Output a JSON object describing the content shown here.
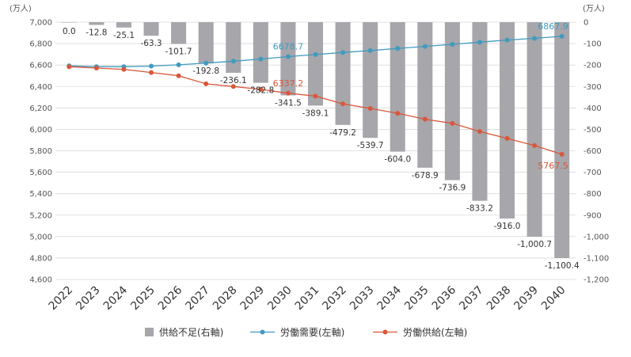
{
  "chart_data": {
    "type": "bar+line",
    "categories": [
      "2022",
      "2023",
      "2024",
      "2025",
      "2026",
      "2027",
      "2028",
      "2029",
      "2030",
      "2031",
      "2032",
      "2033",
      "2034",
      "2035",
      "2036",
      "2037",
      "2038",
      "2039",
      "2040"
    ],
    "left_axis": {
      "unit": "(万人)",
      "ylim": [
        4600,
        7000
      ],
      "ticks": [
        "4,600",
        "4,800",
        "5,000",
        "5,200",
        "5,400",
        "5,600",
        "5,800",
        "6,000",
        "6,200",
        "6,400",
        "6,600",
        "6,800",
        "7,000"
      ]
    },
    "right_axis": {
      "unit": "(万人)",
      "ylim": [
        -1200,
        0
      ],
      "ticks": [
        "0",
        "-100",
        "-200",
        "-300",
        "-400",
        "-500",
        "-600",
        "-700",
        "-800",
        "-900",
        "-1,000",
        "-1,100",
        "-1,200"
      ]
    },
    "series": [
      {
        "name": "供給不足(右軸)",
        "type": "bar",
        "axis": "right",
        "color": "#a6a6ab",
        "values": [
          0.0,
          -12.8,
          -25.1,
          -63.3,
          -101.7,
          -192.8,
          -236.1,
          -282.8,
          -341.5,
          -389.1,
          -479.2,
          -539.7,
          -604.0,
          -678.9,
          -736.9,
          -833.2,
          -916.0,
          -1000.7,
          -1100.4
        ],
        "labels": [
          "0.0",
          "-12.8",
          "-25.1",
          "-63.3",
          "-101.7",
          "-192.8",
          "-236.1",
          "-282.8",
          "-341.5",
          "-389.1",
          "-479.2",
          "-539.7",
          "-604.0",
          "-678.9",
          "-736.9",
          "-833.2",
          "-916.0",
          "-1,000.7",
          "-1,100.4"
        ]
      },
      {
        "name": "労働需要(左軸)",
        "type": "line",
        "axis": "left",
        "color": "#3f9bbf",
        "values": [
          6593,
          6585,
          6585,
          6590,
          6602,
          6618,
          6636,
          6656,
          6678.7,
          6698,
          6717,
          6735,
          6755,
          6774,
          6793,
          6813,
          6833,
          6849,
          6867.9
        ],
        "labeled": {
          "8": "6678.7",
          "18": "6867.9"
        }
      },
      {
        "name": "労働供給(左軸)",
        "type": "line",
        "axis": "left",
        "color": "#d9573b",
        "values": [
          6584,
          6572,
          6560,
          6530,
          6500,
          6425,
          6400,
          6373,
          6337.2,
          6310,
          6238,
          6195,
          6150,
          6095,
          6056,
          5980,
          5915,
          5849,
          5767.5
        ],
        "labeled": {
          "8": "6337.2",
          "18": "5767.5"
        }
      }
    ]
  }
}
